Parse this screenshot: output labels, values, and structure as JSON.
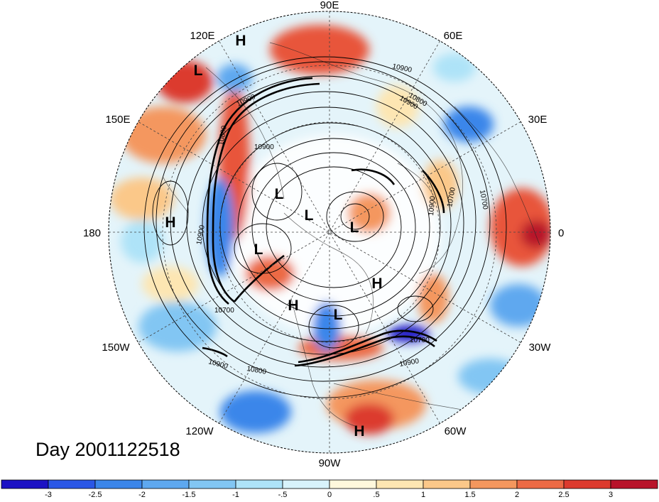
{
  "map": {
    "projection": "polar stereographic (north pole)",
    "longitude_labels": [
      {
        "text": "90E",
        "lon": 90
      },
      {
        "text": "60E",
        "lon": 60
      },
      {
        "text": "30E",
        "lon": 30
      },
      {
        "text": "0",
        "lon": 0
      },
      {
        "text": "30W",
        "lon": -30
      },
      {
        "text": "60W",
        "lon": -60
      },
      {
        "text": "90W",
        "lon": -90
      },
      {
        "text": "120W",
        "lon": -120
      },
      {
        "text": "150W",
        "lon": -150
      },
      {
        "text": "180",
        "lon": 180
      },
      {
        "text": "150E",
        "lon": 150
      },
      {
        "text": "120E",
        "lon": 120
      }
    ],
    "pressure_centers": [
      {
        "type": "H",
        "label": "H",
        "lon": 110,
        "lat": 24
      },
      {
        "type": "L",
        "label": "L",
        "lon": 120,
        "lat": 32
      },
      {
        "type": "H",
        "label": "H",
        "lon": 180,
        "lat": 28
      },
      {
        "type": "L",
        "label": "L",
        "lon": 153,
        "lat": 67
      },
      {
        "type": "L",
        "label": "L",
        "lon": 130,
        "lat": 79
      },
      {
        "type": "L",
        "label": "L",
        "lon": -25,
        "lat": 80
      },
      {
        "type": "L",
        "label": "L",
        "lon": -165,
        "lat": 68
      },
      {
        "type": "H",
        "label": "H",
        "lon": -30,
        "lat": 64
      },
      {
        "type": "H",
        "label": "H",
        "lon": -118,
        "lat": 57
      },
      {
        "type": "L",
        "label": "L",
        "lon": -100,
        "lat": 66
      },
      {
        "type": "H",
        "label": "H",
        "lon": -80,
        "lat": 12
      }
    ],
    "contour_labels": [
      "10900",
      "10900",
      "10900",
      "10900",
      "10700",
      "10700",
      "10700",
      "10900",
      "10800",
      "10900",
      "10700",
      "10900",
      "10800",
      "10900",
      "10800"
    ],
    "colors": {
      "cold_strong": "#1a2fb8",
      "cold": "#5aa0e8",
      "cool": "#bfe6f5",
      "neutral": "#ffffff",
      "warm": "#fde2a8",
      "hot": "#e8553a",
      "hot_strong": "#a50f26"
    }
  },
  "caption": "Day 2001122518",
  "colorbar": {
    "colors": [
      "#1c12c4",
      "#2a57e6",
      "#3b86ea",
      "#5ea8ef",
      "#82c6f3",
      "#aee3f8",
      "#d8f3fb",
      "#fff8dc",
      "#fde6b2",
      "#fbc889",
      "#f4975e",
      "#ec6a45",
      "#dc3a2e",
      "#b8132a"
    ],
    "tick_labels": [
      "-3",
      "-2.5",
      "-2",
      "-1.5",
      "-1",
      "-.5",
      "0",
      ".5",
      "1",
      "1.5",
      "2",
      "2.5",
      "3"
    ]
  }
}
